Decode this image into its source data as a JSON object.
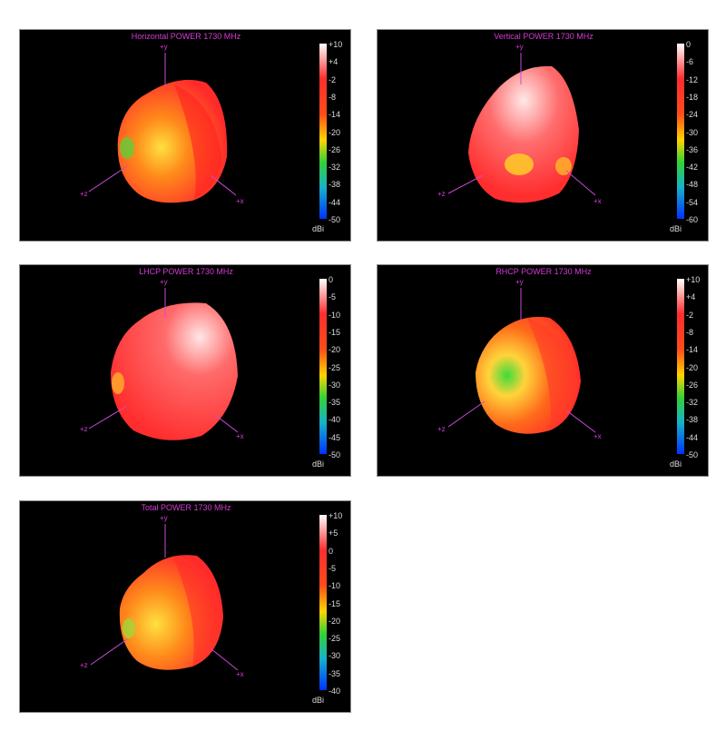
{
  "chart_data": [
    {
      "type": "other",
      "title": "Horizontal POWER 1730  MHz",
      "axes": [
        "+y",
        "+z",
        "+x"
      ],
      "colorbar": {
        "unit": "dBi",
        "ticks": [
          "+10",
          "+4",
          "-2",
          "-8",
          "-14",
          "-20",
          "-26",
          "-32",
          "-38",
          "-44",
          "-50"
        ],
        "range": [
          -50,
          10
        ]
      }
    },
    {
      "type": "other",
      "title": "Vertical POWER 1730  MHz",
      "axes": [
        "+y",
        "+z",
        "+x"
      ],
      "colorbar": {
        "unit": "dBi",
        "ticks": [
          "0",
          "-6",
          "-12",
          "-18",
          "-24",
          "-30",
          "-36",
          "-42",
          "-48",
          "-54",
          "-60"
        ],
        "range": [
          -60,
          0
        ]
      }
    },
    {
      "type": "other",
      "title": "LHCP POWER 1730  MHz",
      "axes": [
        "+y",
        "+z",
        "+x"
      ],
      "colorbar": {
        "unit": "dBi",
        "ticks": [
          "0",
          "-5",
          "-10",
          "-15",
          "-20",
          "-25",
          "-30",
          "-35",
          "-40",
          "-45",
          "-50"
        ],
        "range": [
          -50,
          0
        ]
      }
    },
    {
      "type": "other",
      "title": "RHCP POWER 1730  MHz",
      "axes": [
        "+y",
        "+z",
        "+x"
      ],
      "colorbar": {
        "unit": "dBi",
        "ticks": [
          "+10",
          "+4",
          "-2",
          "-8",
          "-14",
          "-20",
          "-26",
          "-32",
          "-38",
          "-44",
          "-50"
        ],
        "range": [
          -50,
          10
        ]
      }
    },
    {
      "type": "other",
      "title": "Total POWER 1730  MHz",
      "axes": [
        "+y",
        "+z",
        "+x"
      ],
      "colorbar": {
        "unit": "dBi",
        "ticks": [
          "+10",
          "+5",
          "0",
          "-5",
          "-10",
          "-15",
          "-20",
          "-25",
          "-30",
          "-35",
          "-40"
        ],
        "range": [
          -40,
          10
        ]
      }
    }
  ],
  "colors": {
    "background": "#000000",
    "title_color": "#d53cd6",
    "axis_color": "#c94bd6",
    "pattern_main": "#ff3b2a",
    "pattern_highlight": "#ffd24a",
    "pattern_null": "#3ddc3a",
    "pattern_peak": "#ffe5e5"
  }
}
